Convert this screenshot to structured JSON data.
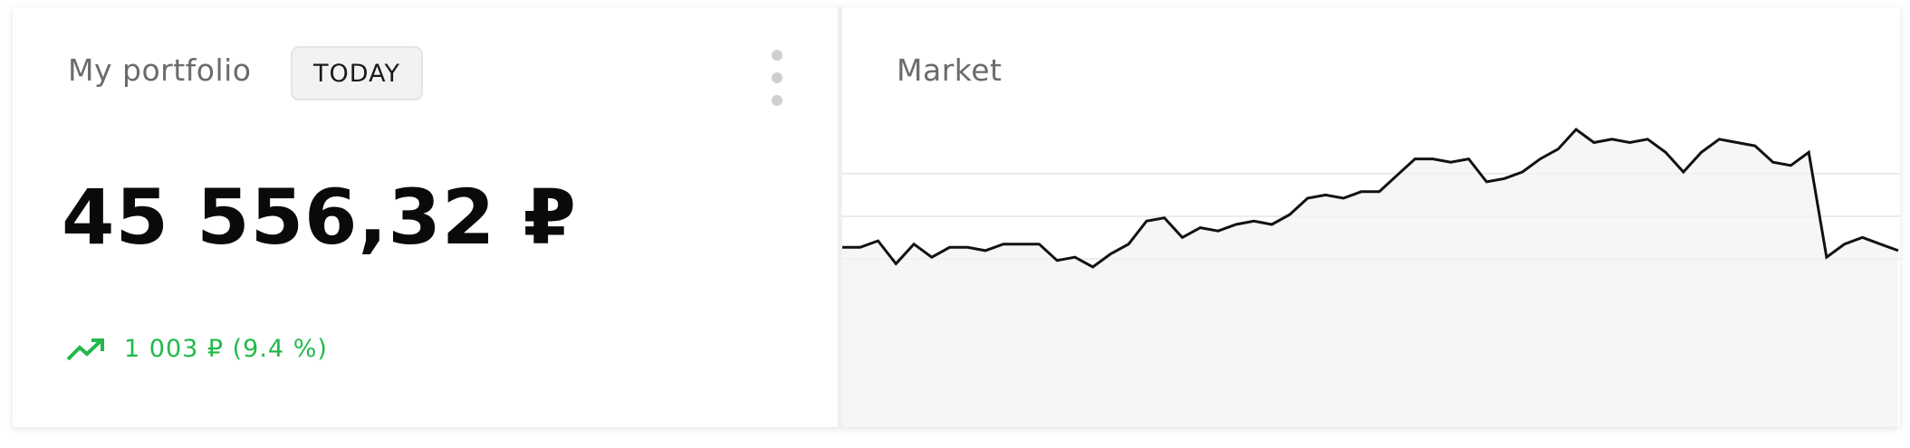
{
  "portfolio": {
    "title": "My portfolio",
    "period_label": "TODAY",
    "balance": "45 556,32 ₽",
    "change": "1 003 ₽ (9.4 %)",
    "change_color": "#21b94a",
    "trend_icon": "trending-up-icon",
    "menu_icon": "more-vertical-icon"
  },
  "market": {
    "title": "Market"
  },
  "chart_data": {
    "type": "area",
    "title": "",
    "xlabel": "",
    "ylabel": "",
    "grid": true,
    "line_color": "#111111",
    "fill_color": "#f3f3f3",
    "ylim": [
      0,
      100
    ],
    "values": [
      35,
      35,
      37,
      30,
      36,
      32,
      35,
      35,
      34,
      36,
      36,
      36,
      31,
      32,
      29,
      33,
      36,
      43,
      44,
      38,
      41,
      40,
      42,
      43,
      42,
      45,
      50,
      51,
      50,
      52,
      52,
      57,
      62,
      62,
      61,
      62,
      55,
      56,
      58,
      62,
      65,
      71,
      67,
      68,
      67,
      68,
      64,
      58,
      64,
      68,
      67,
      66,
      61,
      60,
      64,
      32,
      36,
      38,
      36,
      34
    ]
  }
}
